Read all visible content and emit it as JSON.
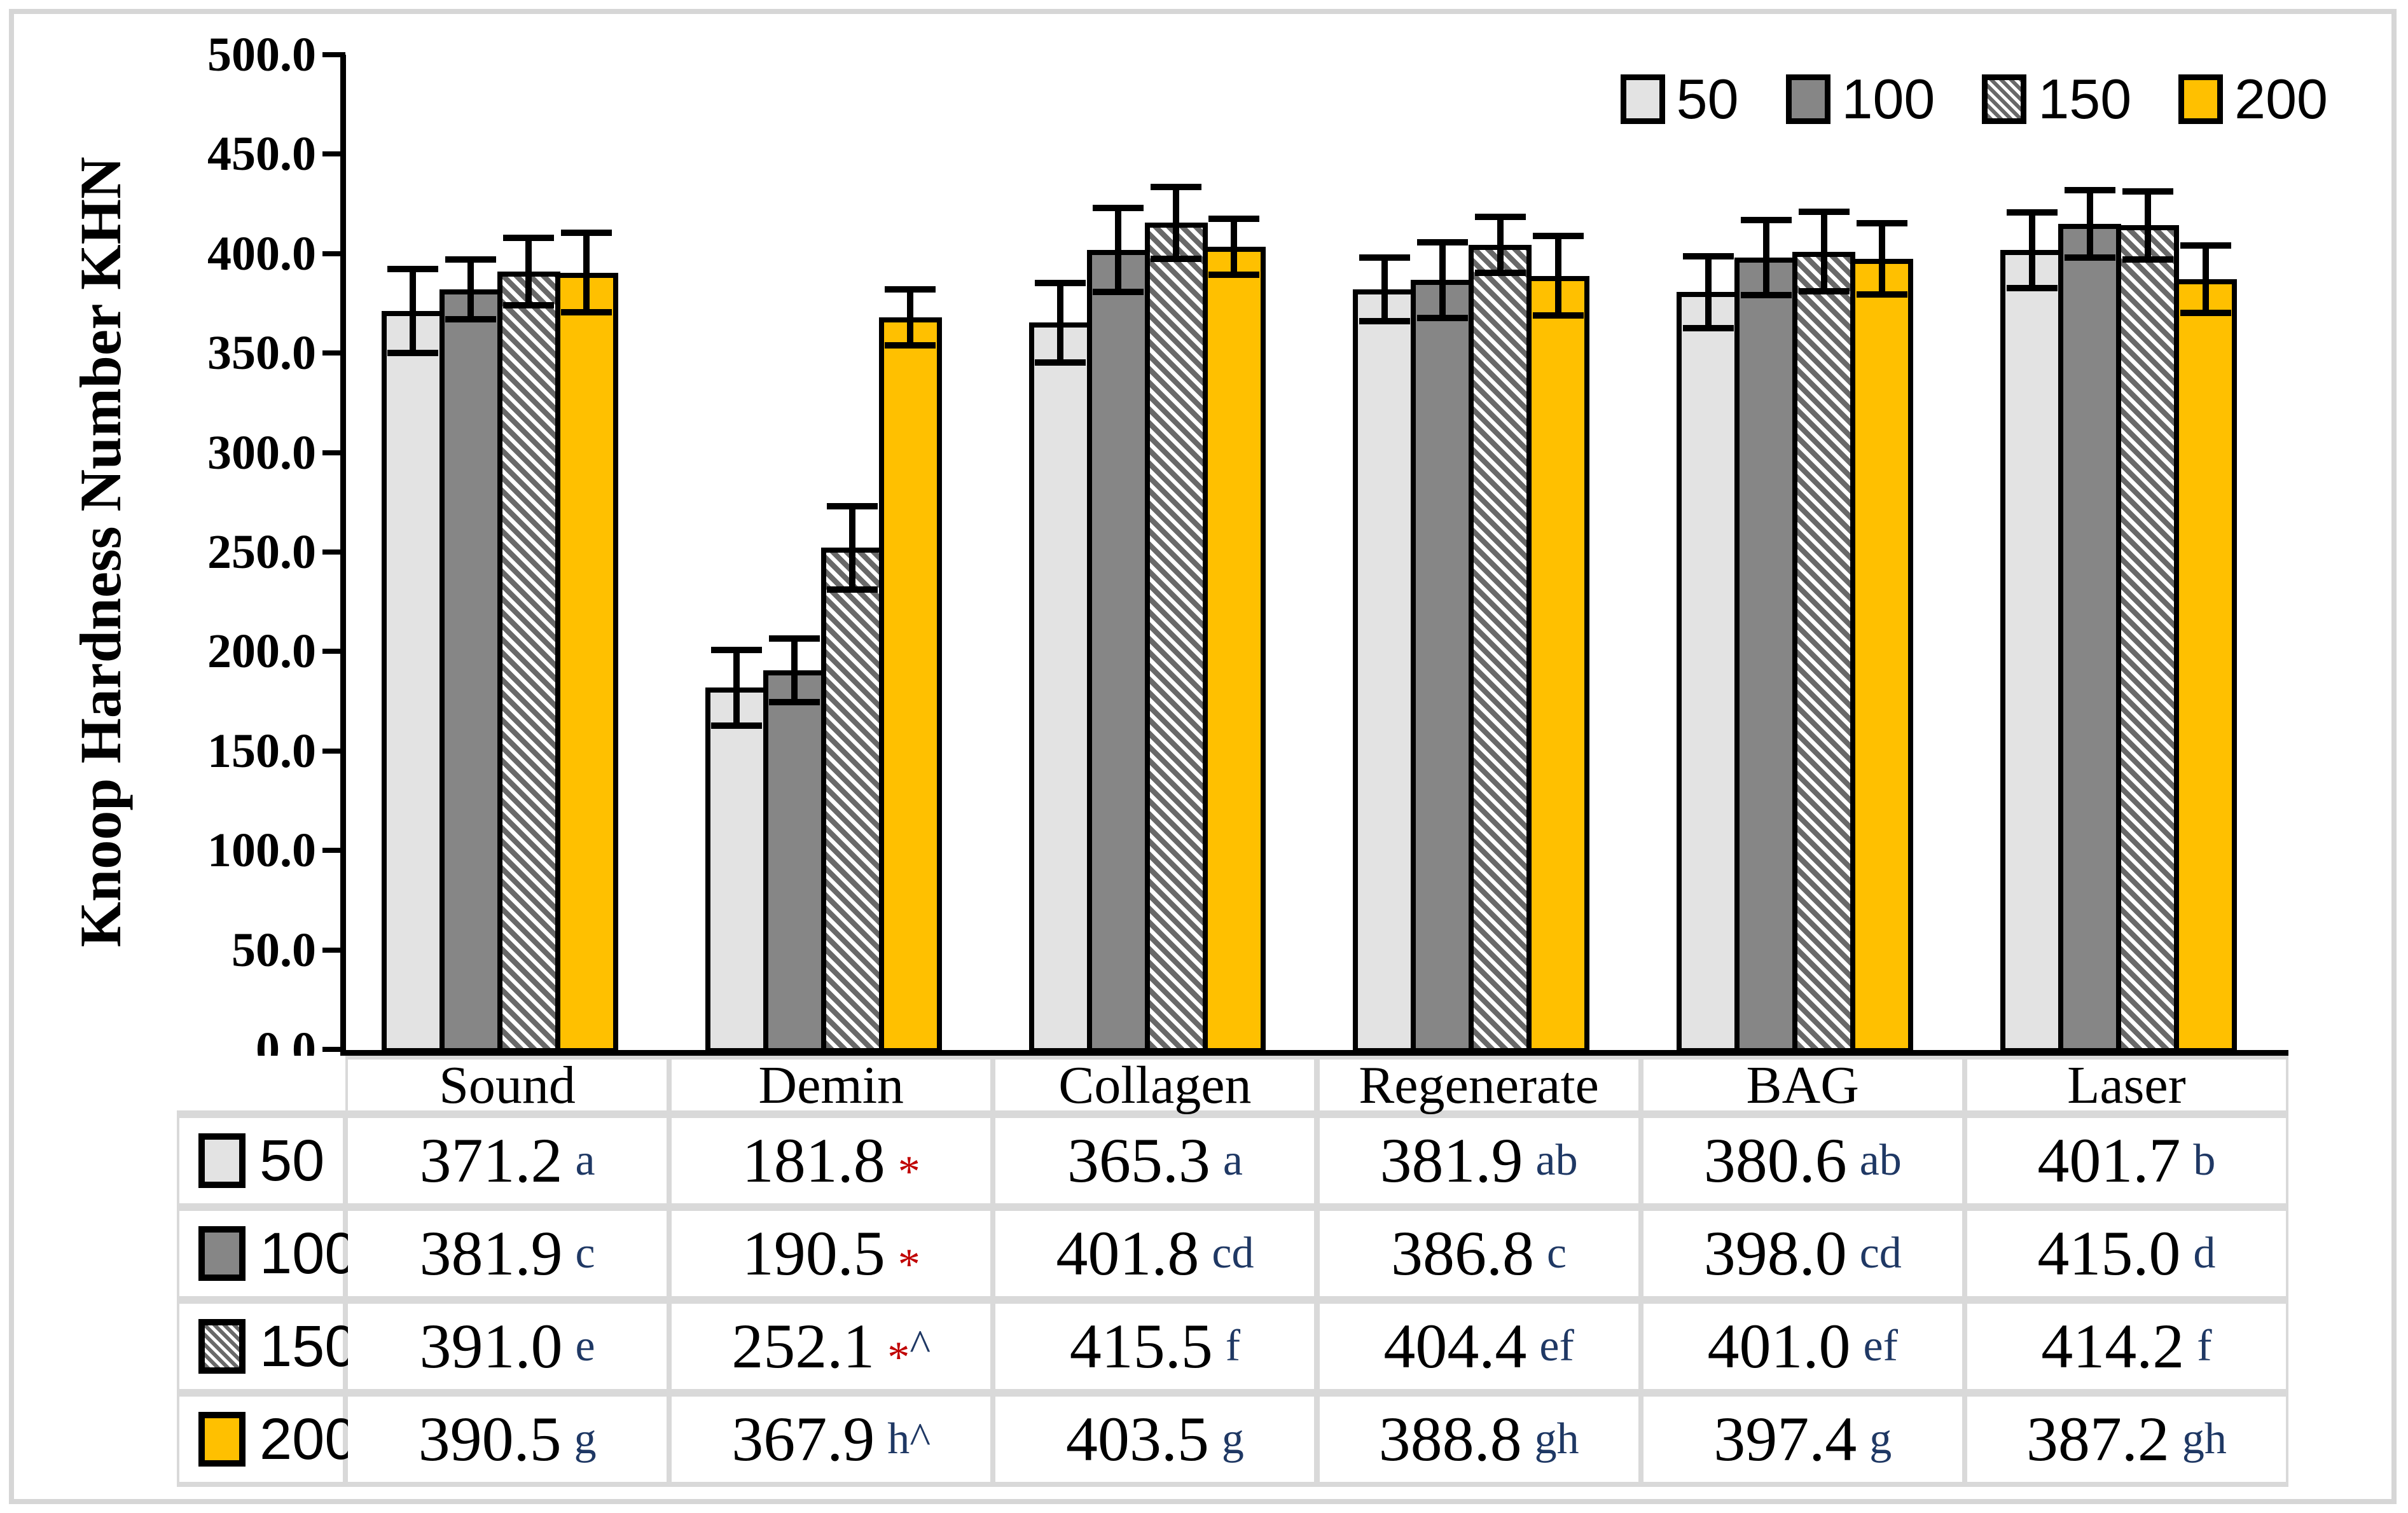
{
  "y_axis": {
    "title": "Knoop Hardness Number KHN",
    "tick_labels": [
      "0.0",
      "50.0",
      "100.0",
      "150.0",
      "200.0",
      "250.0",
      "300.0",
      "350.0",
      "400.0",
      "450.0",
      "500.0"
    ]
  },
  "legend": {
    "items": [
      "50",
      "100",
      "150",
      "200"
    ]
  },
  "colors": {
    "bar_outline": "#000000",
    "axis": "#000000",
    "table_grid": "#D9D9D9",
    "annotation_letter": "#1F3864",
    "annotation_asterisk": "#C00000",
    "hatch_background": "#FFFFFF"
  },
  "chart_data": {
    "type": "bar",
    "title": "",
    "xlabel": "",
    "ylabel": "Knoop Hardness Number KHN",
    "ylim": [
      0,
      500
    ],
    "ytick_step": 50,
    "grid": false,
    "legend_position": "top-right",
    "error_bars": true,
    "categories": [
      "Sound",
      "Demin",
      "Collagen",
      "Regenerate",
      "BAG",
      "Laser"
    ],
    "series": [
      {
        "name": "50",
        "pattern": "solid",
        "color": "#E3E3E3",
        "values": [
          371.2,
          181.8,
          365.3,
          381.9,
          380.6,
          401.7
        ],
        "labels": [
          "371.2",
          "181.8",
          "365.3",
          "381.9",
          "380.6",
          "401.7"
        ],
        "errors": [
          21,
          19,
          20,
          16,
          18,
          19
        ],
        "annotations": [
          "a",
          "*",
          "a",
          "ab",
          "ab",
          "b"
        ]
      },
      {
        "name": "100",
        "pattern": "solid",
        "color": "#868686",
        "values": [
          381.9,
          190.5,
          401.8,
          386.8,
          398.0,
          415.0
        ],
        "labels": [
          "381.9",
          "190.5",
          "401.8",
          "386.8",
          "398.0",
          "415.0"
        ],
        "errors": [
          15,
          16,
          21,
          19,
          19,
          17
        ],
        "annotations": [
          "c",
          "*",
          "cd",
          "c",
          "cd",
          "d"
        ]
      },
      {
        "name": "150",
        "pattern": "diagonal-hatch",
        "color": "#696969",
        "values": [
          391.0,
          252.1,
          415.5,
          404.4,
          401.0,
          414.2
        ],
        "labels": [
          "391.0",
          "252.1",
          "415.5",
          "404.4",
          "401.0",
          "414.2"
        ],
        "errors": [
          17,
          21,
          18,
          14,
          20,
          17
        ],
        "annotations": [
          "e",
          "*^",
          "f",
          "ef",
          "ef",
          "f"
        ]
      },
      {
        "name": "200",
        "pattern": "solid",
        "color": "#FFC000",
        "values": [
          390.5,
          367.9,
          403.5,
          388.8,
          397.4,
          387.2
        ],
        "labels": [
          "390.5",
          "367.9",
          "403.5",
          "388.8",
          "397.4",
          "387.2"
        ],
        "errors": [
          20,
          14,
          14,
          20,
          18,
          17
        ],
        "annotations": [
          "g",
          "h^",
          "g",
          "gh",
          "g",
          "gh"
        ]
      }
    ]
  }
}
